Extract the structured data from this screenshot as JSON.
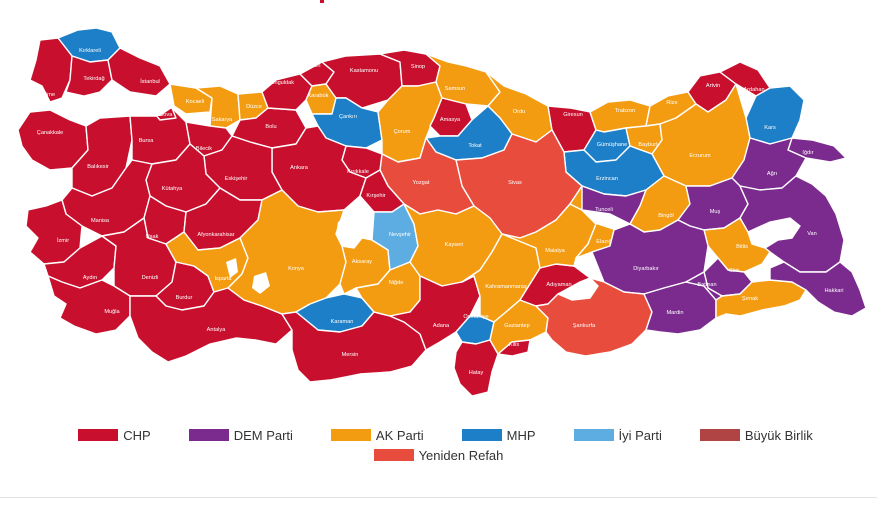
{
  "colors": {
    "chp": "#c8102e",
    "dem": "#7b2a8e",
    "akp": "#f39c12",
    "mhp": "#1c7fc7",
    "iyi": "#5dade2",
    "bbp": "#b04444",
    "yrp": "#e74c3c"
  },
  "legend": [
    {
      "key": "chp",
      "label": "CHP"
    },
    {
      "key": "dem",
      "label": "DEM Parti"
    },
    {
      "key": "akp",
      "label": "AK Parti"
    },
    {
      "key": "mhp",
      "label": "MHP"
    },
    {
      "key": "iyi",
      "label": "İyi Parti"
    },
    {
      "key": "bbp",
      "label": "Büyük Birlik"
    },
    {
      "key": "yrp",
      "label": "Yeniden Refah"
    }
  ],
  "provinces": [
    {
      "name": "Kırklareli",
      "party": "mhp"
    },
    {
      "name": "Edirne",
      "party": "chp"
    },
    {
      "name": "Tekirdağ",
      "party": "chp"
    },
    {
      "name": "İstanbul",
      "party": "chp"
    },
    {
      "name": "Çanakkale",
      "party": "chp"
    },
    {
      "name": "Balıkesir",
      "party": "chp"
    },
    {
      "name": "Bursa",
      "party": "chp"
    },
    {
      "name": "Yalova",
      "party": "chp"
    },
    {
      "name": "Kocaeli",
      "party": "akp"
    },
    {
      "name": "Sakarya",
      "party": "akp"
    },
    {
      "name": "Düzce",
      "party": "akp"
    },
    {
      "name": "Bolu",
      "party": "chp"
    },
    {
      "name": "Zonguldak",
      "party": "chp"
    },
    {
      "name": "Bartın",
      "party": "chp"
    },
    {
      "name": "Karabük",
      "party": "akp"
    },
    {
      "name": "Kastamonu",
      "party": "chp"
    },
    {
      "name": "Sinop",
      "party": "chp"
    },
    {
      "name": "Samsun",
      "party": "akp"
    },
    {
      "name": "Çankırı",
      "party": "mhp"
    },
    {
      "name": "Çorum",
      "party": "akp"
    },
    {
      "name": "Amasya",
      "party": "chp"
    },
    {
      "name": "Ordu",
      "party": "akp"
    },
    {
      "name": "Tokat",
      "party": "mhp"
    },
    {
      "name": "Giresun",
      "party": "chp"
    },
    {
      "name": "Trabzon",
      "party": "akp"
    },
    {
      "name": "Rize",
      "party": "akp"
    },
    {
      "name": "Artvin",
      "party": "chp"
    },
    {
      "name": "Ardahan",
      "party": "chp"
    },
    {
      "name": "Kars",
      "party": "mhp"
    },
    {
      "name": "Iğdır",
      "party": "dem"
    },
    {
      "name": "Gümüşhane",
      "party": "mhp"
    },
    {
      "name": "Bayburt",
      "party": "akp"
    },
    {
      "name": "Erzurum",
      "party": "akp"
    },
    {
      "name": "Ağrı",
      "party": "dem"
    },
    {
      "name": "Erzincan",
      "party": "mhp"
    },
    {
      "name": "Sivas",
      "party": "yrp"
    },
    {
      "name": "Yozgat",
      "party": "yrp"
    },
    {
      "name": "Kırıkkale",
      "party": "chp"
    },
    {
      "name": "Ankara",
      "party": "chp"
    },
    {
      "name": "Kırşehir",
      "party": "chp"
    },
    {
      "name": "Bilecik",
      "party": "chp"
    },
    {
      "name": "Eskişehir",
      "party": "chp"
    },
    {
      "name": "Kütahya",
      "party": "chp"
    },
    {
      "name": "Manisa",
      "party": "chp"
    },
    {
      "name": "İzmir",
      "party": "chp"
    },
    {
      "name": "Uşak",
      "party": "chp"
    },
    {
      "name": "Afyonkarahisar",
      "party": "chp"
    },
    {
      "name": "Aydın",
      "party": "chp"
    },
    {
      "name": "Denizli",
      "party": "chp"
    },
    {
      "name": "Muğla",
      "party": "chp"
    },
    {
      "name": "Burdur",
      "party": "chp"
    },
    {
      "name": "Isparta",
      "party": "akp"
    },
    {
      "name": "Antalya",
      "party": "chp"
    },
    {
      "name": "Konya",
      "party": "akp"
    },
    {
      "name": "Karaman",
      "party": "mhp"
    },
    {
      "name": "Mersin",
      "party": "chp"
    },
    {
      "name": "Aksaray",
      "party": "akp"
    },
    {
      "name": "Nevşehir",
      "party": "iyi"
    },
    {
      "name": "Niğde",
      "party": "akp"
    },
    {
      "name": "Kayseri",
      "party": "akp"
    },
    {
      "name": "Adana",
      "party": "chp"
    },
    {
      "name": "Osmaniye",
      "party": "mhp"
    },
    {
      "name": "Hatay",
      "party": "chp"
    },
    {
      "name": "Kahramanmaraş",
      "party": "akp"
    },
    {
      "name": "Gaziantep",
      "party": "akp"
    },
    {
      "name": "Kilis",
      "party": "chp"
    },
    {
      "name": "Adıyaman",
      "party": "chp"
    },
    {
      "name": "Malatya",
      "party": "akp"
    },
    {
      "name": "Elazığ",
      "party": "akp"
    },
    {
      "name": "Tunceli",
      "party": "dem"
    },
    {
      "name": "Bingöl",
      "party": "akp"
    },
    {
      "name": "Muş",
      "party": "dem"
    },
    {
      "name": "Van",
      "party": "dem"
    },
    {
      "name": "Bitlis",
      "party": "akp"
    },
    {
      "name": "Siirt",
      "party": "dem"
    },
    {
      "name": "Diyarbakır",
      "party": "dem"
    },
    {
      "name": "Şanlıurfa",
      "party": "yrp"
    },
    {
      "name": "Mardin",
      "party": "dem"
    },
    {
      "name": "Batman",
      "party": "dem"
    },
    {
      "name": "Şırnak",
      "party": "akp"
    },
    {
      "name": "Hakkari",
      "party": "dem"
    }
  ]
}
